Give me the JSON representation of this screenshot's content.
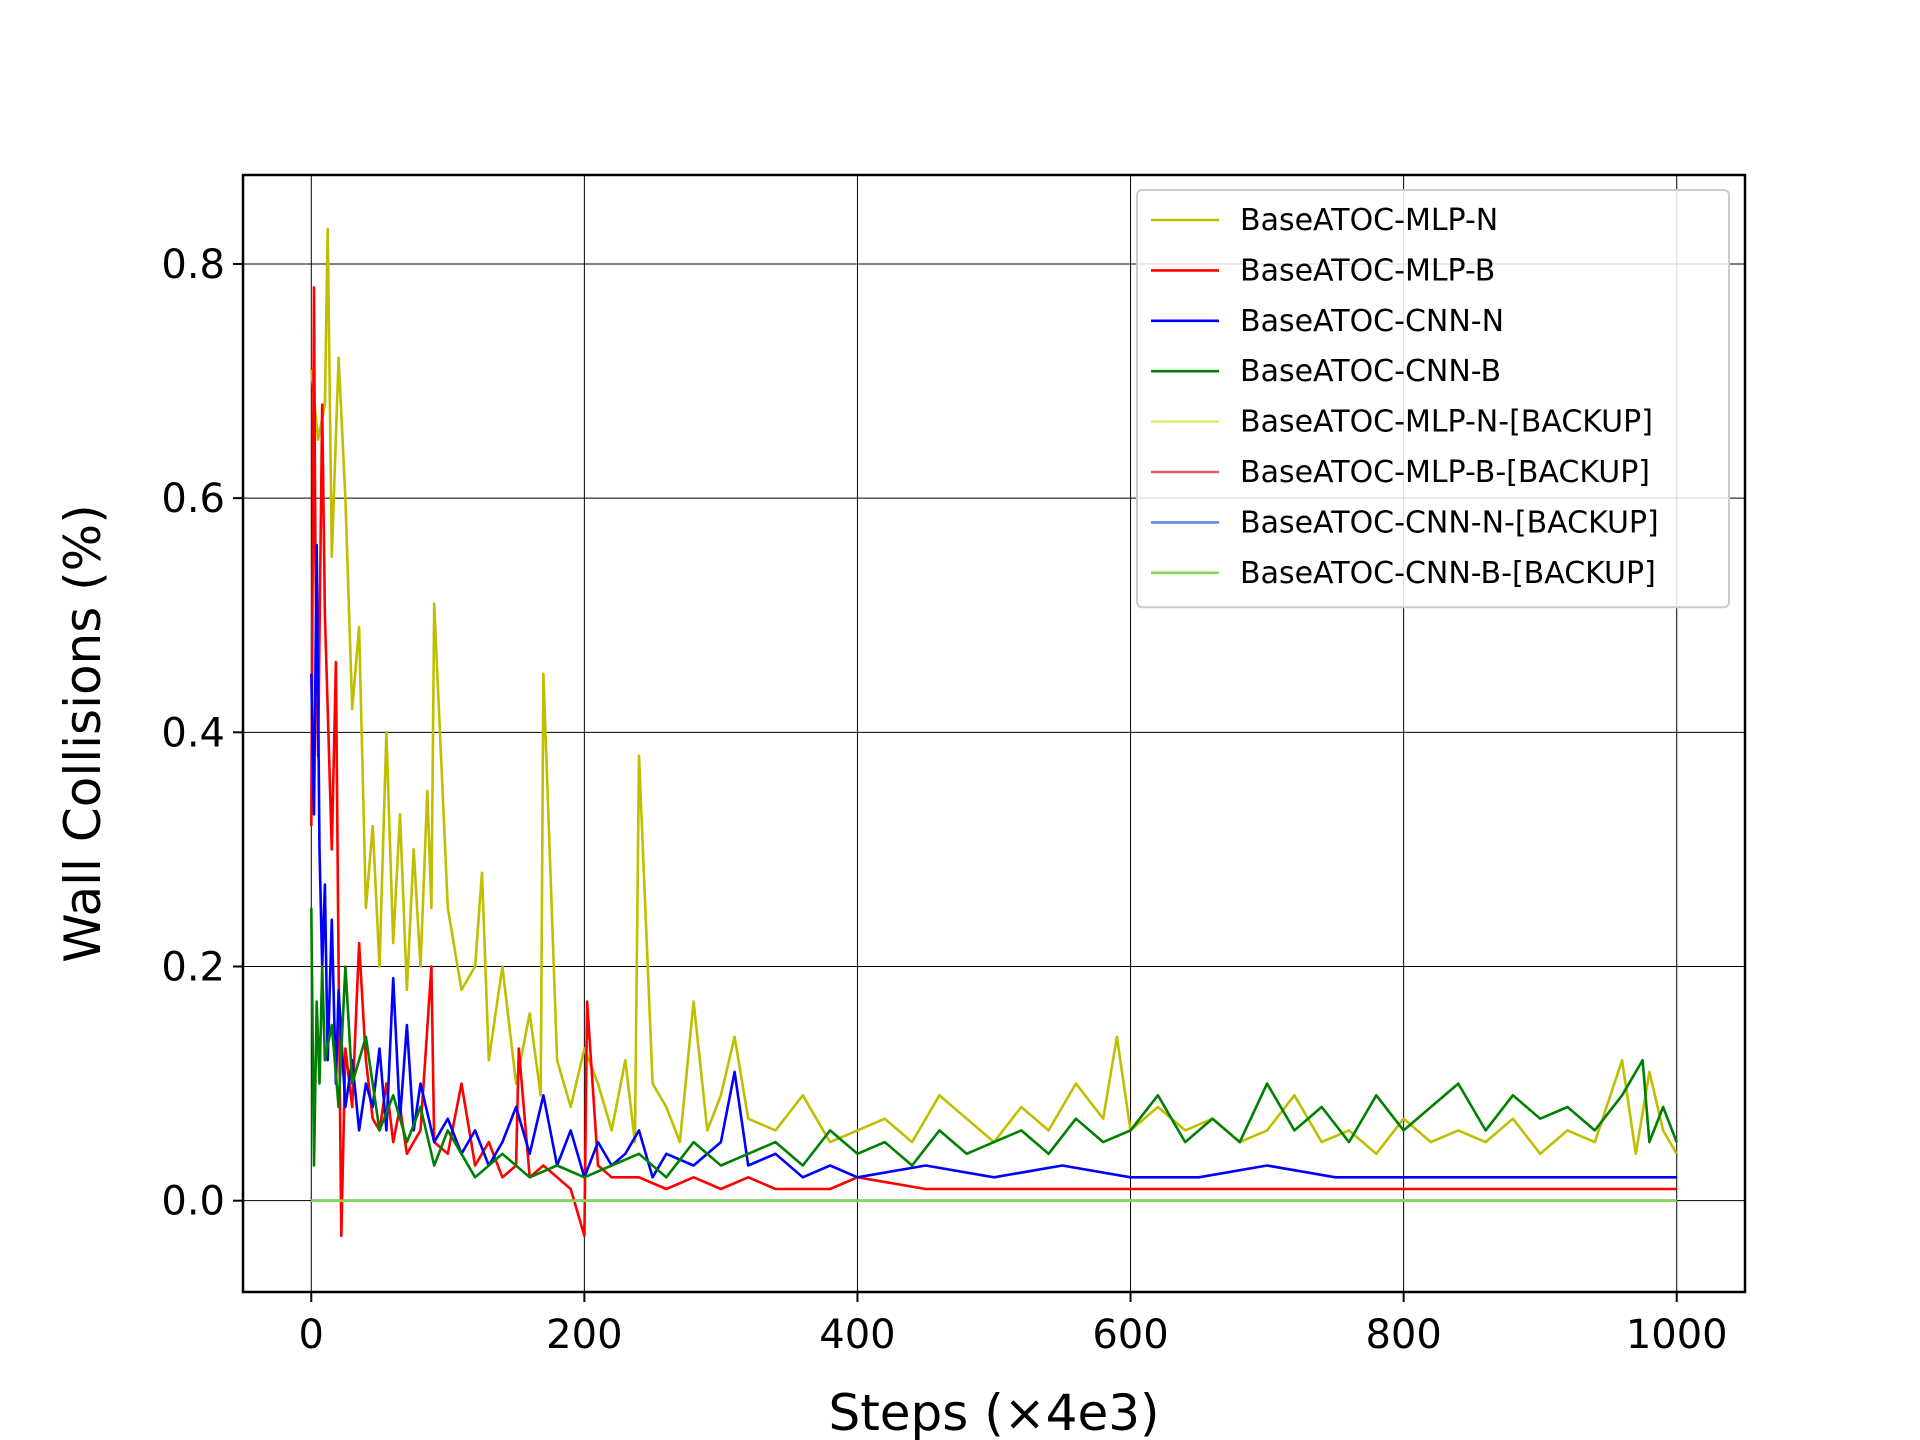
{
  "chart_data": {
    "type": "line",
    "title": "",
    "xlabel": "Steps (×4e3)",
    "ylabel": "Wall Collisions (%)",
    "xlim": [
      -50,
      1050
    ],
    "ylim": [
      -0.078,
      0.876
    ],
    "xticks": [
      0,
      200,
      400,
      600,
      800,
      1000
    ],
    "yticks": [
      0.0,
      0.2,
      0.4,
      0.6,
      0.8
    ],
    "xtick_labels": [
      "0",
      "200",
      "400",
      "600",
      "800",
      "1000"
    ],
    "ytick_labels": [
      "0.0",
      "0.2",
      "0.4",
      "0.6",
      "0.8"
    ],
    "grid": true,
    "legend_position": "top-right",
    "series": [
      {
        "name": "BaseATOC-MLP-N",
        "color": "#bfbf00",
        "x": [
          0,
          5,
          10,
          12,
          15,
          20,
          25,
          30,
          35,
          40,
          45,
          50,
          55,
          60,
          65,
          70,
          75,
          80,
          85,
          88,
          90,
          100,
          110,
          120,
          125,
          130,
          140,
          150,
          160,
          168,
          170,
          180,
          190,
          200,
          210,
          220,
          230,
          237,
          240,
          250,
          260,
          270,
          280,
          290,
          300,
          310,
          320,
          340,
          360,
          380,
          400,
          420,
          440,
          460,
          480,
          500,
          520,
          540,
          560,
          580,
          590,
          600,
          620,
          640,
          660,
          680,
          700,
          720,
          740,
          760,
          780,
          800,
          820,
          840,
          860,
          880,
          900,
          920,
          940,
          960,
          970,
          980,
          990,
          1000
        ],
        "values": [
          0.71,
          0.65,
          0.68,
          0.83,
          0.55,
          0.72,
          0.6,
          0.42,
          0.49,
          0.25,
          0.32,
          0.2,
          0.4,
          0.22,
          0.33,
          0.18,
          0.3,
          0.2,
          0.35,
          0.25,
          0.51,
          0.25,
          0.18,
          0.2,
          0.28,
          0.12,
          0.2,
          0.1,
          0.16,
          0.09,
          0.45,
          0.12,
          0.08,
          0.13,
          0.1,
          0.06,
          0.12,
          0.05,
          0.38,
          0.1,
          0.08,
          0.05,
          0.17,
          0.06,
          0.09,
          0.14,
          0.07,
          0.06,
          0.09,
          0.05,
          0.06,
          0.07,
          0.05,
          0.09,
          0.07,
          0.05,
          0.08,
          0.06,
          0.1,
          0.07,
          0.14,
          0.06,
          0.08,
          0.06,
          0.07,
          0.05,
          0.06,
          0.09,
          0.05,
          0.06,
          0.04,
          0.07,
          0.05,
          0.06,
          0.05,
          0.07,
          0.04,
          0.06,
          0.05,
          0.12,
          0.04,
          0.11,
          0.06,
          0.04
        ]
      },
      {
        "name": "BaseATOC-MLP-B",
        "color": "#ff0000",
        "x": [
          0,
          2,
          3,
          5,
          8,
          10,
          12,
          15,
          18,
          20,
          22,
          25,
          28,
          30,
          35,
          40,
          45,
          50,
          55,
          60,
          65,
          70,
          80,
          88,
          90,
          100,
          110,
          120,
          130,
          140,
          150,
          152,
          160,
          170,
          180,
          190,
          200,
          202,
          210,
          220,
          240,
          260,
          280,
          300,
          320,
          340,
          360,
          380,
          400,
          450,
          500,
          550,
          600,
          650,
          700,
          750,
          800,
          850,
          900,
          950,
          1000
        ],
        "values": [
          0.32,
          0.78,
          0.55,
          0.38,
          0.68,
          0.5,
          0.42,
          0.3,
          0.46,
          0.2,
          -0.03,
          0.13,
          0.1,
          0.08,
          0.22,
          0.12,
          0.07,
          0.06,
          0.1,
          0.05,
          0.08,
          0.04,
          0.06,
          0.2,
          0.05,
          0.04,
          0.1,
          0.03,
          0.05,
          0.02,
          0.03,
          0.13,
          0.02,
          0.03,
          0.02,
          0.01,
          -0.03,
          0.17,
          0.03,
          0.02,
          0.02,
          0.01,
          0.02,
          0.01,
          0.02,
          0.01,
          0.01,
          0.01,
          0.02,
          0.01,
          0.01,
          0.01,
          0.01,
          0.01,
          0.01,
          0.01,
          0.01,
          0.01,
          0.01,
          0.01,
          0.01
        ]
      },
      {
        "name": "BaseATOC-CNN-N",
        "color": "#0000ff",
        "x": [
          0,
          2,
          4,
          6,
          8,
          10,
          12,
          15,
          18,
          20,
          25,
          30,
          35,
          40,
          45,
          50,
          55,
          60,
          65,
          70,
          75,
          80,
          90,
          100,
          110,
          120,
          130,
          140,
          150,
          160,
          170,
          180,
          190,
          200,
          210,
          220,
          230,
          240,
          250,
          260,
          280,
          300,
          310,
          320,
          340,
          360,
          380,
          400,
          450,
          500,
          550,
          600,
          650,
          700,
          750,
          800,
          850,
          900,
          950,
          1000
        ],
        "values": [
          0.45,
          0.33,
          0.56,
          0.3,
          0.2,
          0.27,
          0.12,
          0.24,
          0.1,
          0.18,
          0.08,
          0.12,
          0.06,
          0.1,
          0.08,
          0.13,
          0.06,
          0.19,
          0.07,
          0.15,
          0.06,
          0.1,
          0.05,
          0.07,
          0.04,
          0.06,
          0.03,
          0.05,
          0.08,
          0.04,
          0.09,
          0.03,
          0.06,
          0.02,
          0.05,
          0.03,
          0.04,
          0.06,
          0.02,
          0.04,
          0.03,
          0.05,
          0.11,
          0.03,
          0.04,
          0.02,
          0.03,
          0.02,
          0.03,
          0.02,
          0.03,
          0.02,
          0.02,
          0.03,
          0.02,
          0.02,
          0.02,
          0.02,
          0.02,
          0.02
        ]
      },
      {
        "name": "BaseATOC-CNN-B",
        "color": "#008000",
        "x": [
          0,
          2,
          4,
          6,
          8,
          10,
          15,
          20,
          25,
          30,
          40,
          50,
          60,
          70,
          80,
          90,
          100,
          120,
          140,
          160,
          180,
          200,
          220,
          240,
          260,
          280,
          300,
          320,
          340,
          360,
          380,
          400,
          420,
          440,
          460,
          480,
          500,
          520,
          540,
          560,
          580,
          600,
          620,
          640,
          660,
          680,
          700,
          720,
          740,
          760,
          780,
          800,
          820,
          840,
          860,
          880,
          900,
          920,
          940,
          960,
          975,
          980,
          990,
          1000
        ],
        "values": [
          0.25,
          0.03,
          0.17,
          0.1,
          0.2,
          0.12,
          0.15,
          0.08,
          0.2,
          0.1,
          0.14,
          0.06,
          0.09,
          0.05,
          0.08,
          0.03,
          0.06,
          0.02,
          0.04,
          0.02,
          0.03,
          0.02,
          0.03,
          0.04,
          0.02,
          0.05,
          0.03,
          0.04,
          0.05,
          0.03,
          0.06,
          0.04,
          0.05,
          0.03,
          0.06,
          0.04,
          0.05,
          0.06,
          0.04,
          0.07,
          0.05,
          0.06,
          0.09,
          0.05,
          0.07,
          0.05,
          0.1,
          0.06,
          0.08,
          0.05,
          0.09,
          0.06,
          0.08,
          0.1,
          0.06,
          0.09,
          0.07,
          0.08,
          0.06,
          0.09,
          0.12,
          0.05,
          0.08,
          0.05
        ]
      },
      {
        "name": "BaseATOC-MLP-N-[BACKUP]",
        "color": "#e8e87a",
        "x": [
          0,
          1000
        ],
        "values": [
          0.0,
          0.0
        ]
      },
      {
        "name": "BaseATOC-MLP-B-[BACKUP]",
        "color": "#e05a6e",
        "x": [
          0,
          1000
        ],
        "values": [
          0.0,
          0.0
        ]
      },
      {
        "name": "BaseATOC-CNN-N-[BACKUP]",
        "color": "#5b8ee8",
        "x": [
          0,
          1000
        ],
        "values": [
          0.0,
          0.0
        ]
      },
      {
        "name": "BaseATOC-CNN-B-[BACKUP]",
        "color": "#7ed957",
        "x": [
          0,
          1000
        ],
        "values": [
          0.0,
          0.0
        ]
      }
    ]
  }
}
